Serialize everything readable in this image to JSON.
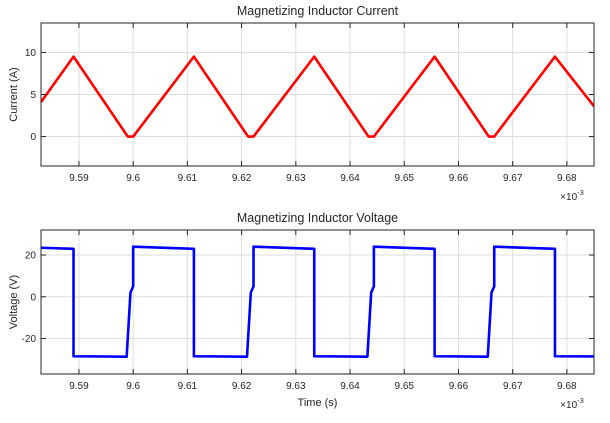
{
  "chart_data": [
    {
      "type": "line",
      "title": "Magnetizing Inductor Current",
      "xlabel": "",
      "ylabel": "Current (A)",
      "x_exponent_label": "×10",
      "x_exponent_power": "-3",
      "xlim": [
        9.583,
        9.685
      ],
      "ylim": [
        -3.5,
        13.5
      ],
      "xticks": [
        9.59,
        9.6,
        9.61,
        9.62,
        9.63,
        9.64,
        9.65,
        9.66,
        9.67,
        9.68
      ],
      "xtick_labels": [
        "9.59",
        "9.6",
        "9.61",
        "9.62",
        "9.63",
        "9.64",
        "9.65",
        "9.66",
        "9.67",
        "9.68"
      ],
      "yticks": [
        0,
        5,
        10
      ],
      "ytick_labels": [
        "0",
        "5",
        "10"
      ],
      "grid": true,
      "series": [
        {
          "color": "#ff0000",
          "x": [
            9.583,
            9.589,
            9.599,
            9.6,
            9.6112,
            9.6212,
            9.6222,
            9.6334,
            9.6434,
            9.6444,
            9.6556,
            9.6656,
            9.6666,
            9.6778,
            9.685
          ],
          "y": [
            4.1,
            9.5,
            0,
            0,
            9.5,
            0,
            0,
            9.5,
            0,
            0,
            9.5,
            0,
            0,
            9.5,
            3.6
          ]
        }
      ]
    },
    {
      "type": "line",
      "title": "Magnetizing Inductor Voltage",
      "xlabel": "Time (s)",
      "ylabel": "Voltage (V)",
      "x_exponent_label": "×10",
      "x_exponent_power": "-3",
      "xlim": [
        9.583,
        9.685
      ],
      "ylim": [
        -37,
        32
      ],
      "xticks": [
        9.59,
        9.6,
        9.61,
        9.62,
        9.63,
        9.64,
        9.65,
        9.66,
        9.67,
        9.68
      ],
      "xtick_labels": [
        "9.59",
        "9.6",
        "9.61",
        "9.62",
        "9.63",
        "9.64",
        "9.65",
        "9.66",
        "9.67",
        "9.68"
      ],
      "yticks": [
        -20,
        0,
        20
      ],
      "ytick_labels": [
        "-20",
        "0",
        "20"
      ],
      "grid": true,
      "series": [
        {
          "color": "#0000ff",
          "x": [
            9.583,
            9.589,
            9.589,
            9.5988,
            9.5995,
            9.6,
            9.6,
            9.6112,
            9.6112,
            9.621,
            9.6217,
            9.6222,
            9.6222,
            9.6334,
            9.6334,
            9.6432,
            9.6439,
            9.6444,
            9.6444,
            9.6556,
            9.6556,
            9.6654,
            9.6661,
            9.6666,
            9.6666,
            9.6778,
            9.6778,
            9.685
          ],
          "y": [
            23.5,
            23,
            -28.5,
            -28.7,
            2,
            5,
            24,
            23,
            -28.5,
            -28.7,
            2,
            5,
            24,
            23,
            -28.5,
            -28.7,
            2,
            5,
            24,
            23,
            -28.5,
            -28.7,
            2,
            5,
            24,
            23,
            -28.5,
            -28.6
          ]
        }
      ]
    }
  ]
}
